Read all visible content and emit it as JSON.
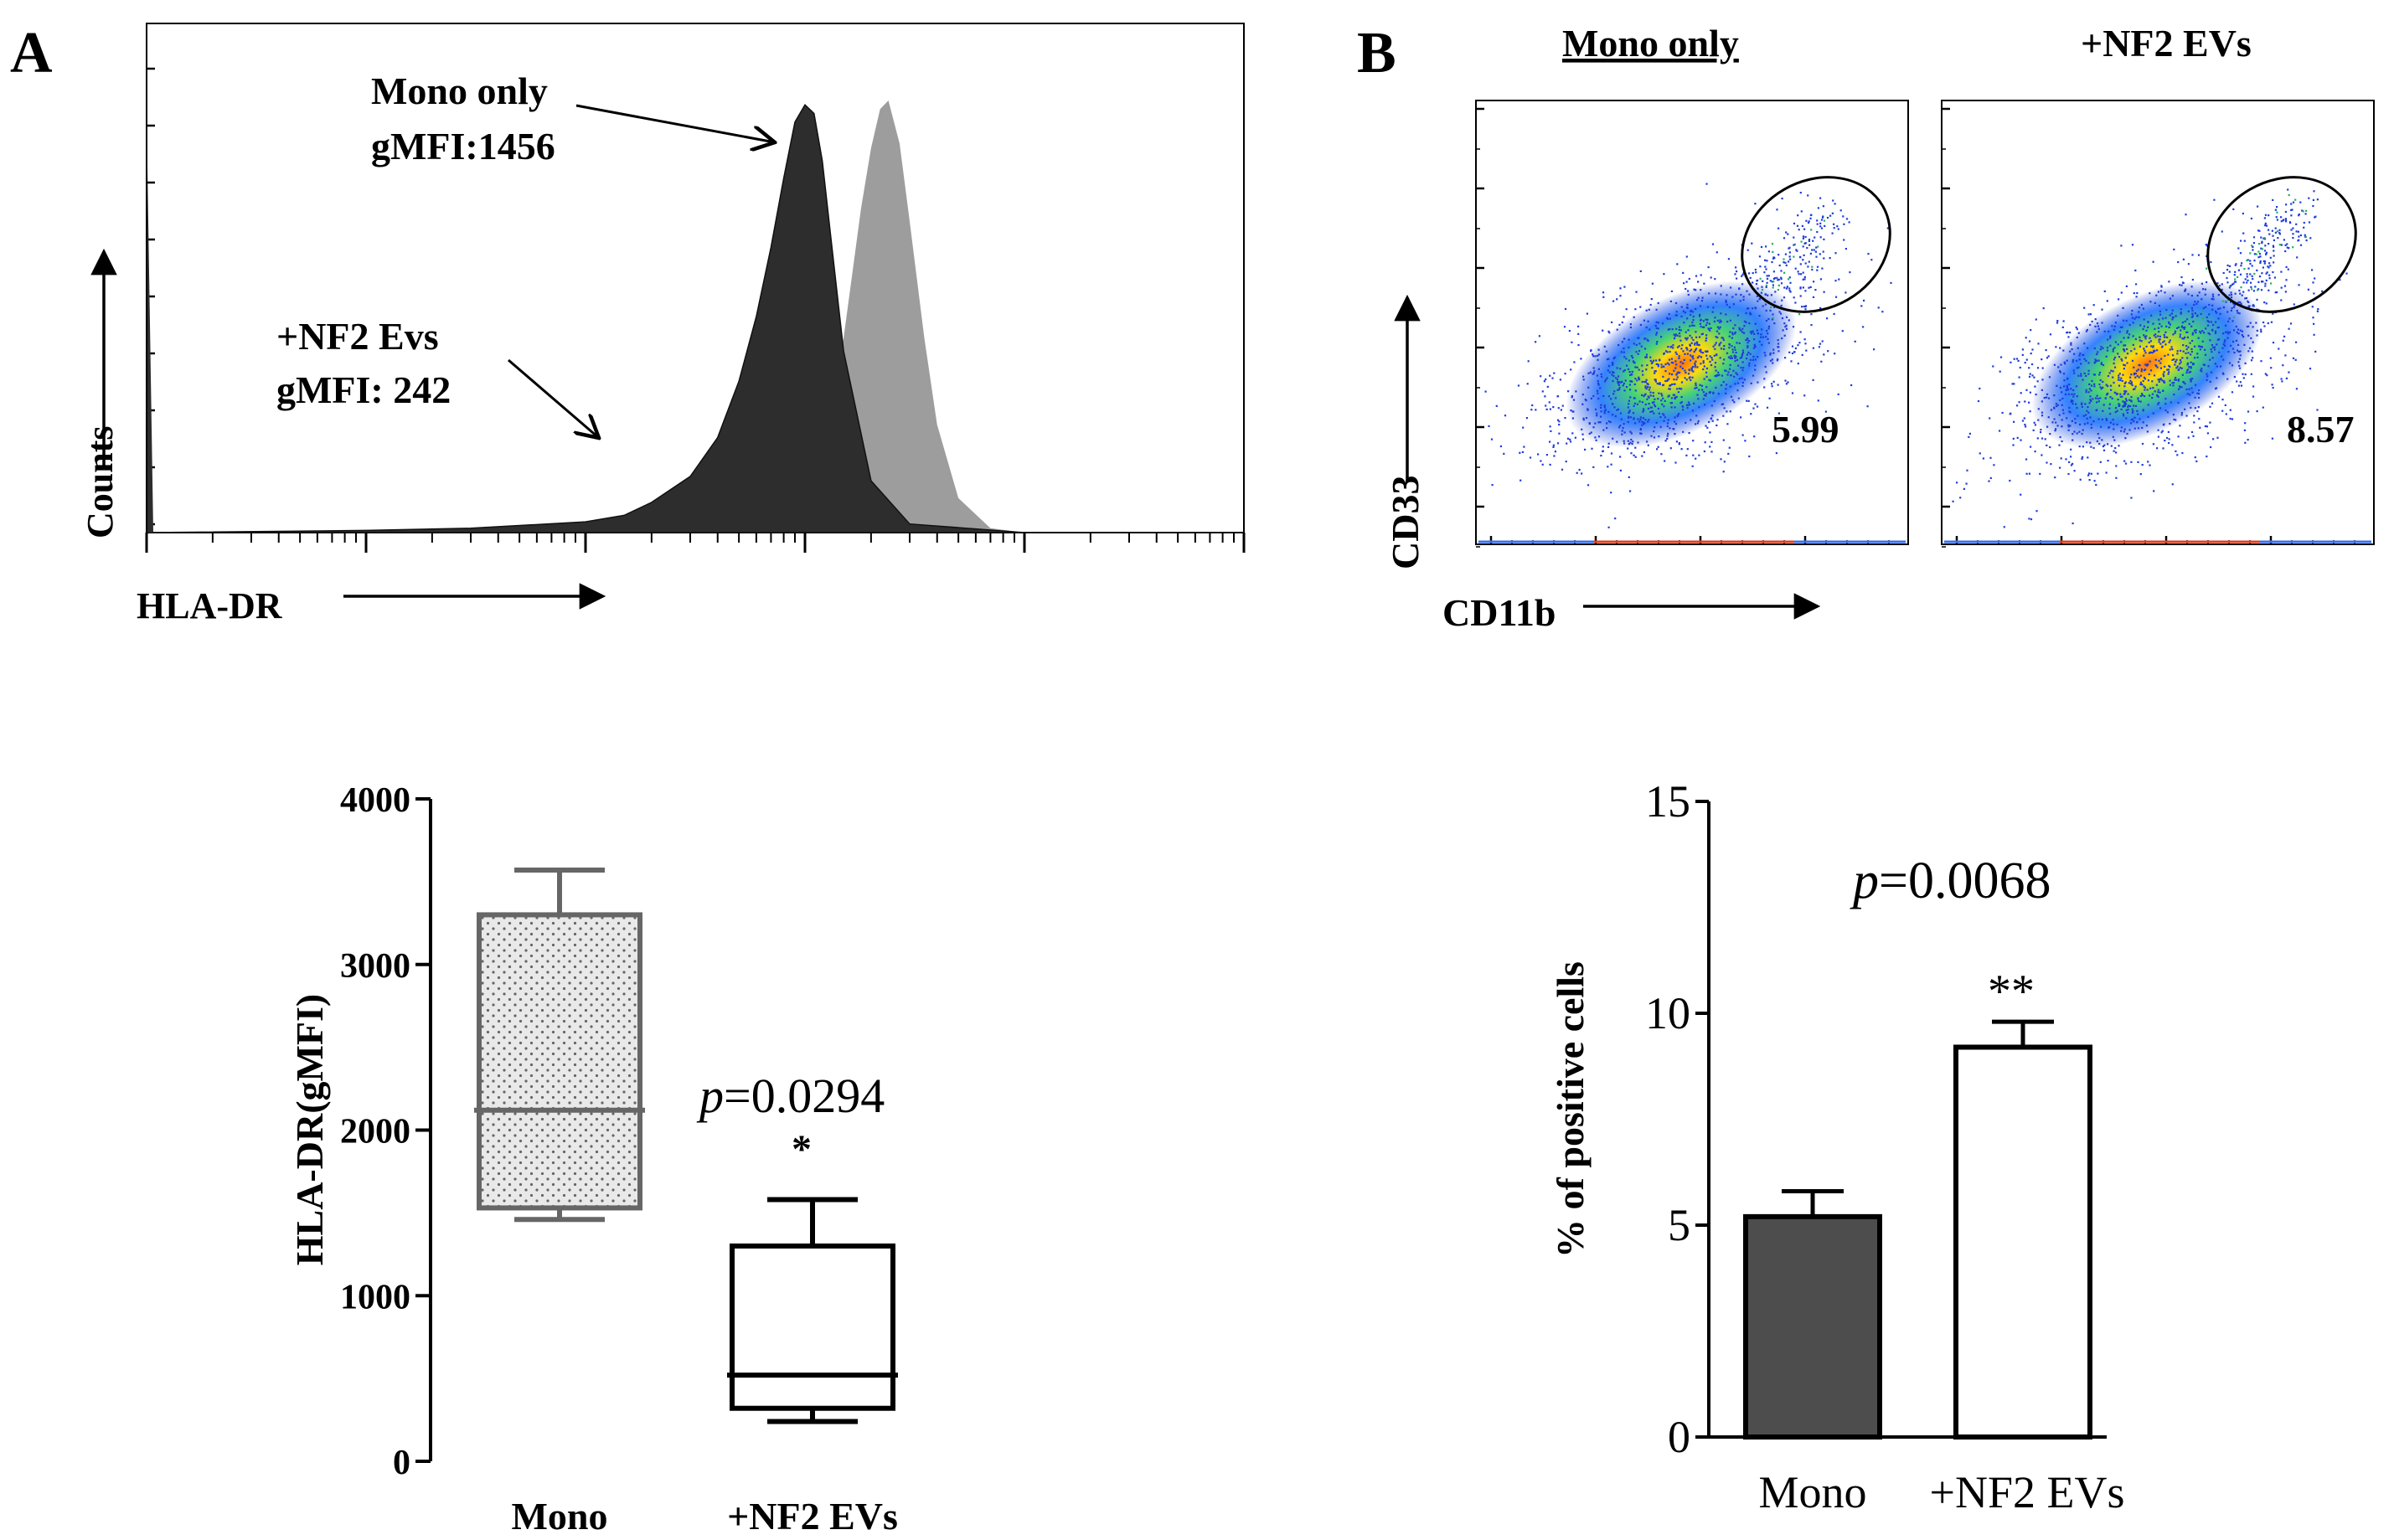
{
  "panels": {
    "A": {
      "letter": "A"
    },
    "B": {
      "letter": "B"
    }
  },
  "chart_data": [
    {
      "id": "histogram",
      "type": "area",
      "panel": "A",
      "title": "",
      "xlabel": "HLA-DR",
      "ylabel": "Counts",
      "xscale": "log",
      "xlim": [
        10,
        1000000
      ],
      "ylim": [
        0,
        1
      ],
      "series": [
        {
          "name": "+NF2 Evs",
          "color": "#2d2d2d",
          "x": [
            10,
            100,
            300,
            1000,
            1500,
            2000,
            3000,
            4000,
            5000,
            6000,
            7000,
            8000,
            9000,
            10000,
            11000,
            12000,
            13000,
            15000,
            20000,
            30000,
            100000,
            1000000
          ],
          "y": [
            0.0,
            0.005,
            0.01,
            0.025,
            0.04,
            0.07,
            0.13,
            0.22,
            0.35,
            0.5,
            0.66,
            0.82,
            0.95,
            0.99,
            0.97,
            0.86,
            0.7,
            0.42,
            0.12,
            0.02,
            0.0,
            0.0
          ]
        },
        {
          "name": "Mono only",
          "color": "#9d9d9d",
          "x": [
            10,
            3000,
            8000,
            12000,
            15000,
            18000,
            20000,
            22000,
            24000,
            27000,
            30000,
            35000,
            40000,
            50000,
            70000,
            100000,
            1000000
          ],
          "y": [
            0.0,
            0.0,
            0.02,
            0.2,
            0.45,
            0.75,
            0.89,
            0.98,
            1.0,
            0.9,
            0.72,
            0.45,
            0.25,
            0.08,
            0.01,
            0.0,
            0.0
          ]
        }
      ],
      "annotations": [
        {
          "label": "Mono only",
          "value_label": "gMFI:1456"
        },
        {
          "label": "+NF2 Evs",
          "value_label": "gMFI: 242"
        }
      ]
    },
    {
      "id": "flow-dotplots",
      "type": "scatter",
      "panel": "B",
      "xlabel": "CD11b",
      "ylabel": "CD33",
      "plots": [
        {
          "title": "Mono only",
          "gate_percent": 5.99,
          "gate_label": "5.99"
        },
        {
          "title": "+NF2 EVs",
          "gate_percent": 8.57,
          "gate_label": "8.57"
        }
      ]
    },
    {
      "id": "boxplot",
      "type": "box",
      "panel": "A",
      "ylabel": "HLA-DR(gMFI)",
      "ylim": [
        0,
        4000
      ],
      "yticks": [
        0,
        1000,
        2000,
        3000,
        4000
      ],
      "ytick_labels": [
        "0",
        "1000",
        "2000",
        "3000",
        "4000"
      ],
      "categories": [
        "Mono",
        "+NF2 EVs"
      ],
      "boxes": [
        {
          "name": "Mono",
          "min": 1460,
          "q1": 1530,
          "median": 2120,
          "q3": 3300,
          "max": 3570
        },
        {
          "name": "+NF2 EVs",
          "min": 240,
          "q1": 320,
          "median": 520,
          "q3": 1300,
          "max": 1580
        }
      ],
      "pvalue": {
        "label": "p",
        "value": "=0.0294"
      },
      "significance": "*"
    },
    {
      "id": "barplot",
      "type": "bar",
      "panel": "B",
      "ylabel": "% of positive cells",
      "ylim": [
        0,
        15
      ],
      "yticks": [
        0,
        5,
        10,
        15
      ],
      "ytick_labels": [
        "0",
        "5",
        "10",
        "15"
      ],
      "categories": [
        "Mono",
        "+NF2 EVs"
      ],
      "values": [
        5.2,
        9.2
      ],
      "errors": [
        0.6,
        0.6
      ],
      "colors": [
        "#4d4d4d",
        "#ffffff"
      ],
      "pvalue": {
        "label": "p",
        "value": "=0.0068"
      },
      "significance": "**"
    }
  ]
}
